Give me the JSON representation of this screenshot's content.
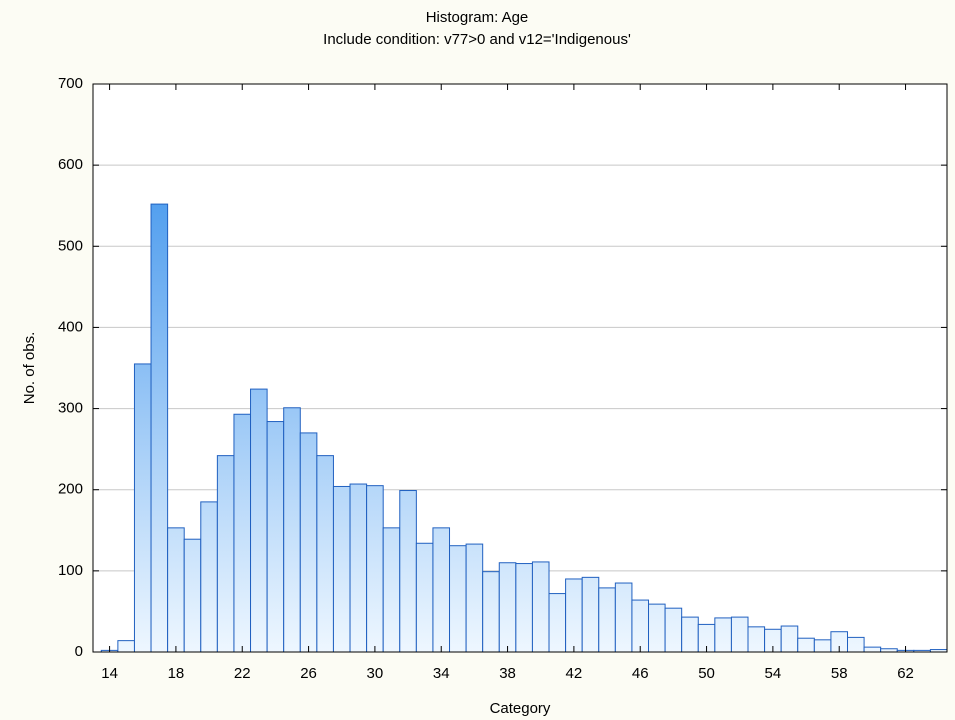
{
  "chart_data": {
    "type": "histogram",
    "title": "Histogram: Age",
    "subtitle": "Include condition: v77>0 and v12='Indigenous'",
    "x_label": "Category",
    "y_label": "No. of obs.",
    "bins": [
      13.5,
      14.5,
      15.5,
      16.5,
      17.5,
      18.5,
      19.5,
      20.5,
      21.5,
      22.5,
      23.5,
      24.5,
      25.5,
      26.5,
      27.5,
      28.5,
      29.5,
      30.5,
      31.5,
      32.5,
      33.5,
      34.5,
      35.5,
      36.5,
      37.5,
      38.5,
      39.5,
      40.5,
      41.5,
      42.5,
      43.5,
      44.5,
      45.5,
      46.5,
      47.5,
      48.5,
      49.5,
      50.5,
      51.5,
      52.5,
      53.5,
      54.5,
      55.5,
      56.5,
      57.5,
      58.5,
      59.5,
      60.5,
      61.5,
      62.5,
      63.5,
      64.5
    ],
    "counts": [
      2,
      14,
      355,
      552,
      153,
      139,
      185,
      242,
      293,
      324,
      284,
      301,
      270,
      242,
      204,
      207,
      205,
      153,
      199,
      134,
      153,
      131,
      133,
      99,
      110,
      109,
      111,
      72,
      90,
      92,
      79,
      85,
      64,
      59,
      54,
      43,
      34,
      42,
      43,
      31,
      28,
      32,
      17,
      15,
      25,
      18,
      6,
      4,
      2,
      2,
      3
    ],
    "color": "#2a88ea",
    "gradient_end": "#eef7ff",
    "edge_color": "#2060c0",
    "xlim": [
      13,
      64.5
    ],
    "xticks": [
      14,
      18,
      22,
      26,
      30,
      34,
      38,
      42,
      46,
      50,
      54,
      58,
      62
    ],
    "ylim": [
      0,
      700
    ],
    "yticks": [
      0,
      100,
      200,
      300,
      400,
      500,
      600,
      700
    ],
    "grid": true
  }
}
